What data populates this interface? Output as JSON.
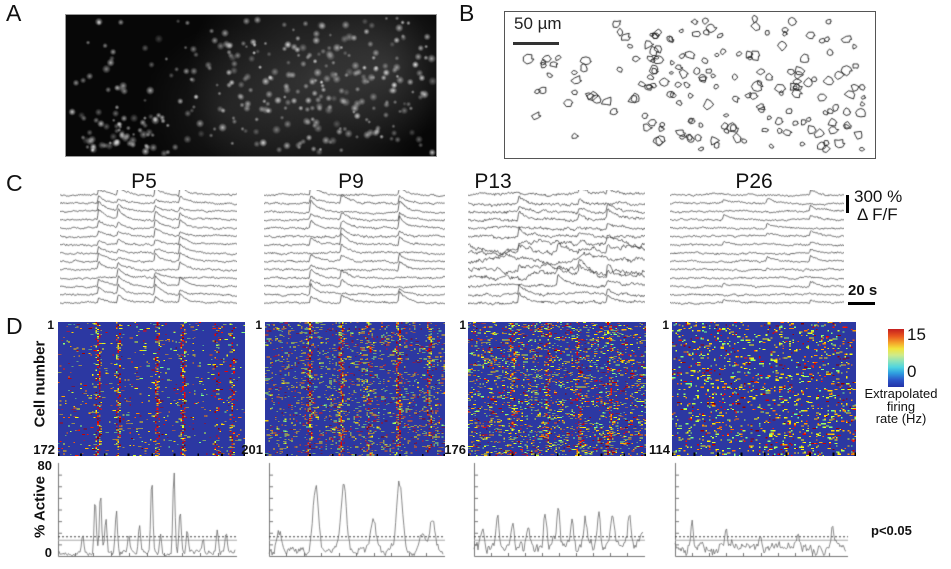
{
  "figure": {
    "panels": {
      "a": {
        "label": "A"
      },
      "b": {
        "label": "B",
        "scalebar_label": "50 µm"
      },
      "c": {
        "label": "C",
        "ages": [
          "P5",
          "P9",
          "P13",
          "P26"
        ],
        "amp_scale": "300 %",
        "dff_label": "Δ F/F",
        "time_scale": "20 s"
      },
      "d": {
        "label": "D",
        "ylabel": "Cell number",
        "first_cell": "1",
        "cell_counts": [
          "172",
          "201",
          "176",
          "114"
        ],
        "colorbar_max": "15",
        "colorbar_min": "0",
        "colorbar_label": [
          "Extrapolated",
          "firing",
          "rate (Hz)"
        ],
        "active_ylabel": "% Active",
        "active_ymax": "80",
        "active_ymin": "0",
        "sig_label": "p<0.05"
      }
    }
  },
  "chart_data": [
    {
      "type": "heatmap",
      "panel": "D",
      "group": "P5",
      "rows": 172,
      "vmin": 0,
      "vmax": 15,
      "value_label": "Extrapolated firing rate (Hz)",
      "events": [
        [
          0.21,
          0.85
        ],
        [
          0.32,
          0.62
        ],
        [
          0.53,
          0.58
        ],
        [
          0.67,
          0.85
        ],
        [
          0.85,
          0.38
        ],
        [
          0.94,
          0.42
        ]
      ],
      "base_density": 0.03
    },
    {
      "type": "heatmap",
      "panel": "D",
      "group": "P9",
      "rows": 201,
      "vmin": 0,
      "vmax": 15,
      "value_label": "Extrapolated firing rate (Hz)",
      "events": [
        [
          0.25,
          0.72
        ],
        [
          0.42,
          0.85
        ],
        [
          0.58,
          0.42
        ],
        [
          0.74,
          0.78
        ],
        [
          0.92,
          0.52
        ]
      ],
      "base_density": 0.075
    },
    {
      "type": "heatmap",
      "panel": "D",
      "group": "P13",
      "rows": 176,
      "vmin": 0,
      "vmax": 15,
      "value_label": "Extrapolated firing rate (Hz)",
      "events": [
        [
          0.25,
          0.42
        ],
        [
          0.45,
          0.42
        ],
        [
          0.62,
          0.38
        ],
        [
          0.8,
          0.42
        ]
      ],
      "base_density": 0.115
    },
    {
      "type": "heatmap",
      "panel": "D",
      "group": "P26",
      "rows": 114,
      "vmin": 0,
      "vmax": 15,
      "value_label": "Extrapolated firing rate (Hz)",
      "events": [],
      "base_density": 0.105
    },
    {
      "type": "line",
      "panel": "D",
      "group": "P5 % Active",
      "ylim": [
        0,
        80
      ],
      "threshold": 17,
      "threshold_label": "p<0.05",
      "baseline": 3,
      "noise": 3,
      "peak_width": 0.006,
      "peaks": [
        [
          0.14,
          15
        ],
        [
          0.21,
          46
        ],
        [
          0.24,
          52
        ],
        [
          0.27,
          30
        ],
        [
          0.33,
          38
        ],
        [
          0.4,
          14
        ],
        [
          0.46,
          24
        ],
        [
          0.53,
          60
        ],
        [
          0.58,
          18
        ],
        [
          0.655,
          70
        ],
        [
          0.69,
          38
        ],
        [
          0.73,
          20
        ],
        [
          0.82,
          12
        ],
        [
          0.9,
          20
        ],
        [
          0.95,
          17
        ]
      ]
    },
    {
      "type": "line",
      "panel": "D",
      "group": "P9 % Active",
      "ylim": [
        0,
        80
      ],
      "threshold": 17,
      "threshold_label": "p<0.05",
      "baseline": 6,
      "noise": 5,
      "peak_width": 0.016,
      "peaks": [
        [
          0.06,
          14
        ],
        [
          0.27,
          58
        ],
        [
          0.43,
          57
        ],
        [
          0.6,
          30
        ],
        [
          0.75,
          56
        ],
        [
          0.88,
          14
        ],
        [
          0.94,
          24
        ]
      ]
    },
    {
      "type": "line",
      "panel": "D",
      "group": "P13 % Active",
      "ylim": [
        0,
        80
      ],
      "threshold": 17,
      "threshold_label": "p<0.05",
      "baseline": 9,
      "noise": 7,
      "peak_width": 0.009,
      "peaks": [
        [
          0.05,
          18
        ],
        [
          0.14,
          30
        ],
        [
          0.23,
          26
        ],
        [
          0.32,
          22
        ],
        [
          0.42,
          25
        ],
        [
          0.5,
          28
        ],
        [
          0.58,
          20
        ],
        [
          0.66,
          24
        ],
        [
          0.74,
          30
        ],
        [
          0.82,
          26
        ],
        [
          0.92,
          24
        ]
      ]
    },
    {
      "type": "line",
      "panel": "D",
      "group": "P26 % Active",
      "ylim": [
        0,
        80
      ],
      "threshold": 17,
      "threshold_label": "p<0.05",
      "baseline": 8,
      "noise": 6,
      "peak_width": 0.007,
      "peaks": [
        [
          0.1,
          20
        ],
        [
          0.3,
          17
        ],
        [
          0.5,
          13
        ],
        [
          0.72,
          12
        ],
        [
          0.92,
          18
        ]
      ]
    }
  ],
  "render": {
    "heatmap_bg": "#2c38a2",
    "trace_color": "#3a3a3a",
    "active_line_color": "#6b6b6b",
    "axis_color": "#777777",
    "threshold_solid_color": "#a8a8a8",
    "threshold_dotted_color": "#444444",
    "traces": [
      {
        "rows": 14,
        "noise": 1.1,
        "amp": 7.5,
        "participation": 0.95,
        "wander": 0.5,
        "events": [
          0.21,
          0.32,
          0.53,
          0.67
        ],
        "seed": 101
      },
      {
        "rows": 14,
        "noise": 1.25,
        "amp": 8.5,
        "participation": 0.75,
        "wander": 0.7,
        "events": [
          0.25,
          0.42,
          0.74
        ],
        "seed": 202
      },
      {
        "rows": 14,
        "noise": 1.8,
        "amp": 7,
        "participation": 0.6,
        "wander": 2.2,
        "events": [
          0.28,
          0.5,
          0.62,
          0.78
        ],
        "seed": 303
      },
      {
        "rows": 14,
        "noise": 1.1,
        "amp": 4,
        "participation": 0.28,
        "wander": 0.5,
        "events": [
          0.3,
          0.55,
          0.8
        ],
        "seed": 404
      }
    ],
    "heatmap_seeds": [
      11,
      22,
      33,
      44
    ],
    "active_seeds": [
      55,
      66,
      77,
      88
    ],
    "panel_a": {
      "seed": 9,
      "dots": 390
    },
    "panel_b": {
      "seed": 10,
      "rois": 230
    }
  }
}
